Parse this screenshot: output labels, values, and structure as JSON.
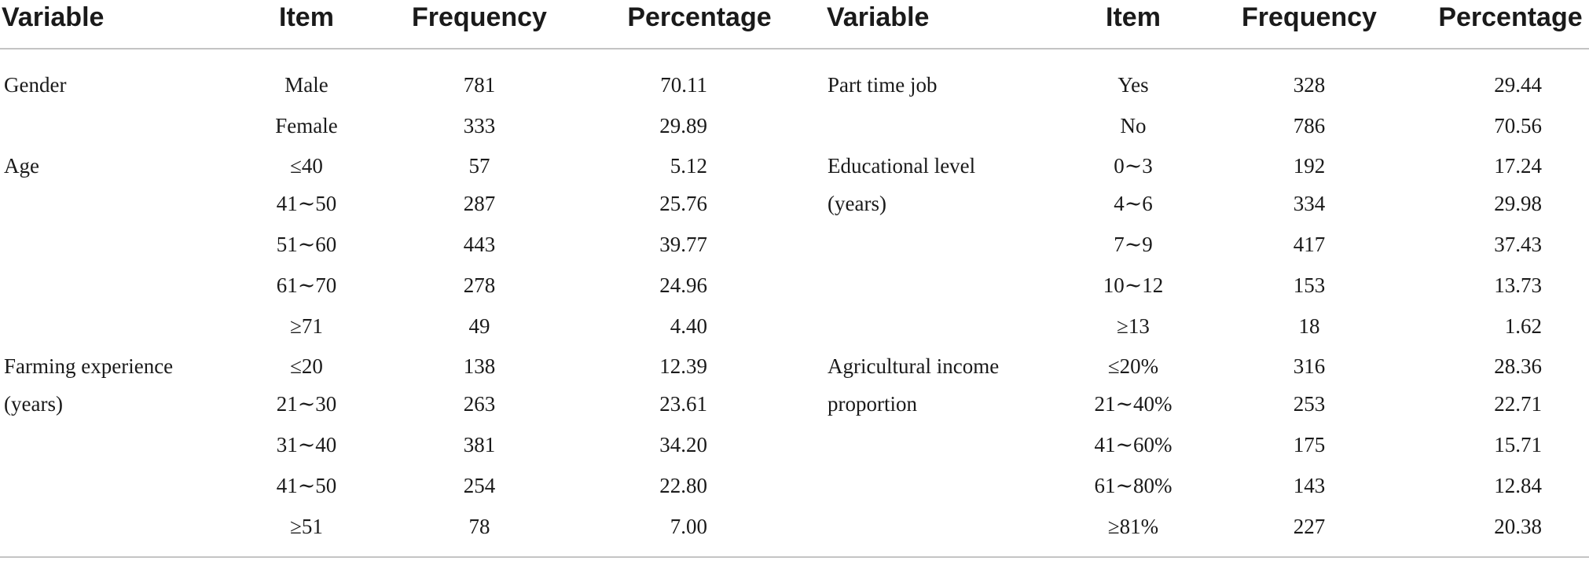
{
  "headers": {
    "left": [
      "Variable",
      "Item",
      "Frequency",
      "Percentage"
    ],
    "right": [
      "Variable",
      "Item",
      "Frequency",
      "Percentage"
    ]
  },
  "rows": [
    {
      "lv": "Gender",
      "li": "Male",
      "lf": "781",
      "lp": "70.11",
      "rv": "Part time job",
      "ri": "Yes",
      "rf": "328",
      "rp": "29.44"
    },
    {
      "lv": "",
      "li": "Female",
      "lf": "333",
      "lp": "29.89",
      "rv": "",
      "ri": "No",
      "rf": "786",
      "rp": "70.56"
    },
    {
      "lv": "Age",
      "li": "≤40",
      "lf": "57",
      "lp": "5.12",
      "rv": "Educational level",
      "ri": "0∼3",
      "rf": "192",
      "rp": "17.24"
    },
    {
      "lv": "",
      "li": "41∼50",
      "lf": "287",
      "lp": "25.76",
      "rv": "(years)",
      "ri": "4∼6",
      "rf": "334",
      "rp": "29.98"
    },
    {
      "lv": "",
      "li": "51∼60",
      "lf": "443",
      "lp": "39.77",
      "rv": "",
      "ri": "7∼9",
      "rf": "417",
      "rp": "37.43"
    },
    {
      "lv": "",
      "li": "61∼70",
      "lf": "278",
      "lp": "24.96",
      "rv": "",
      "ri": "10∼12",
      "rf": "153",
      "rp": "13.73"
    },
    {
      "lv": "",
      "li": "≥71",
      "lf": "49",
      "lp": "4.40",
      "rv": "",
      "ri": "≥13",
      "rf": "18",
      "rp": "1.62"
    },
    {
      "lv": "Farming experience",
      "li": "≤20",
      "lf": "138",
      "lp": "12.39",
      "rv": "Agricultural income",
      "ri": "≤20%",
      "rf": "316",
      "rp": "28.36"
    },
    {
      "lv": "(years)",
      "li": "21∼30",
      "lf": "263",
      "lp": "23.61",
      "rv": "proportion",
      "ri": "21∼40%",
      "rf": "253",
      "rp": "22.71"
    },
    {
      "lv": "",
      "li": "31∼40",
      "lf": "381",
      "lp": "34.20",
      "rv": "",
      "ri": "41∼60%",
      "rf": "175",
      "rp": "15.71"
    },
    {
      "lv": "",
      "li": "41∼50",
      "lf": "254",
      "lp": "22.80",
      "rv": "",
      "ri": "61∼80%",
      "rf": "143",
      "rp": "12.84"
    },
    {
      "lv": "",
      "li": "≥51",
      "lf": "78",
      "lp": "7.00",
      "rv": "",
      "ri": "≥81%",
      "rf": "227",
      "rp": "20.38"
    }
  ]
}
